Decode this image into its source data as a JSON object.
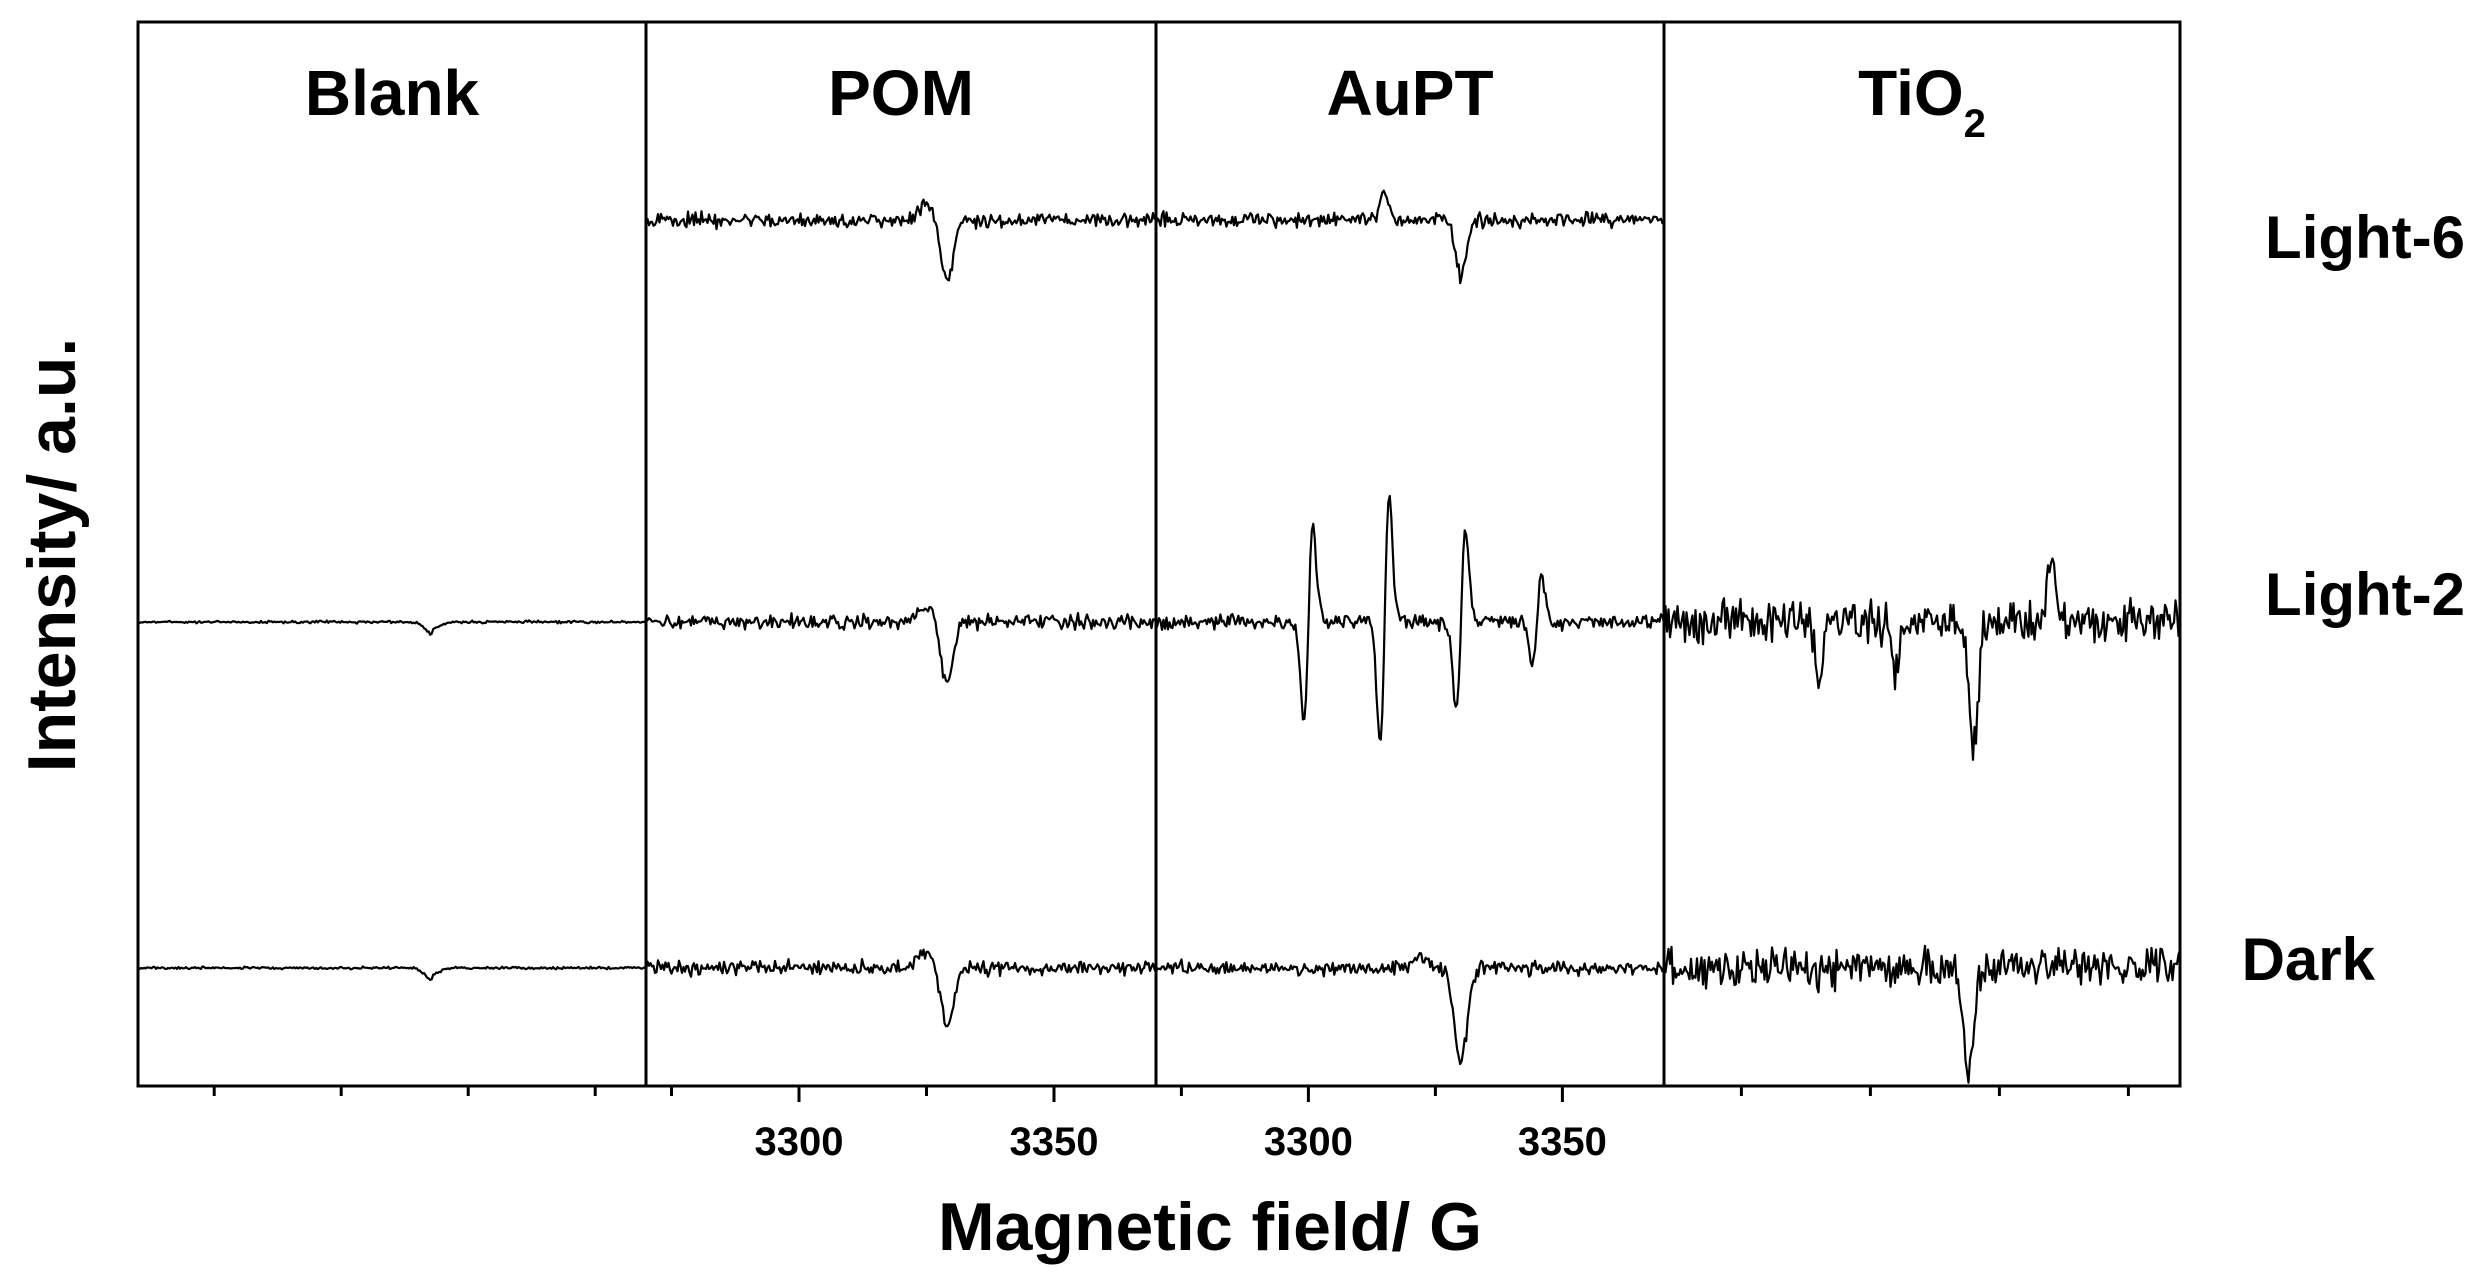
{
  "chart_data": {
    "type": "line",
    "xlabel": "Magnetic field/ G",
    "ylabel": "Intensity/ a.u.",
    "panels": [
      {
        "title": "Blank",
        "ticks": [],
        "xlim": [
          3260,
          3360
        ]
      },
      {
        "title": "POM",
        "ticks": [
          "3300",
          "3350"
        ],
        "xlim": [
          3270,
          3370
        ]
      },
      {
        "title": "AuPT",
        "ticks": [
          "3300",
          "3350"
        ],
        "xlim": [
          3270,
          3370
        ]
      },
      {
        "title": "TiO",
        "title_sub": "2",
        "ticks": [],
        "xlim": [
          3260,
          3360
        ]
      }
    ],
    "series": [
      {
        "name": "Light-6",
        "present_in": [
          "POM",
          "AuPT"
        ]
      },
      {
        "name": "Light-2",
        "present_in": [
          "Blank",
          "POM",
          "AuPT",
          "TiO2"
        ]
      },
      {
        "name": "Dark",
        "present_in": [
          "Blank",
          "POM",
          "AuPT",
          "TiO2"
        ]
      }
    ],
    "features": {
      "POM": [
        {
          "x": 3329,
          "type": "dip"
        }
      ],
      "AuPT_Light6": [
        {
          "x": 3315,
          "type": "small peak"
        },
        {
          "x": 3330,
          "type": "dip"
        }
      ],
      "AuPT_Light2": [
        {
          "x": 3300,
          "type": "derivative",
          "amplitude": 1.0
        },
        {
          "x": 3315,
          "type": "derivative",
          "amplitude": 1.25
        },
        {
          "x": 3330,
          "type": "derivative",
          "amplitude": 0.9
        },
        {
          "x": 3345,
          "type": "derivative",
          "amplitude": 0.45
        }
      ],
      "AuPT_Dark": [
        {
          "x": 3330,
          "type": "dip"
        }
      ]
    },
    "grid": false,
    "legend": "right"
  }
}
